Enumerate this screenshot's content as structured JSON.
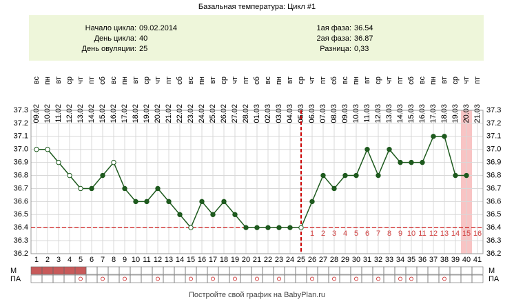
{
  "chart_data": {
    "type": "line",
    "title": "Базальная температура: Цикл #1",
    "summary_left": [
      {
        "label": "Начало цикла:",
        "value": "09.02.2014"
      },
      {
        "label": "День цикла:",
        "value": "40"
      },
      {
        "label": "День овуляции:",
        "value": "25"
      }
    ],
    "summary_right": [
      {
        "label": "1ая фаза:",
        "value": "36.54"
      },
      {
        "label": "2ая фаза:",
        "value": "36.87"
      },
      {
        "label": "Разница:",
        "value": "0,33"
      }
    ],
    "x": [
      1,
      2,
      3,
      4,
      5,
      6,
      7,
      8,
      9,
      10,
      11,
      12,
      13,
      14,
      15,
      16,
      17,
      18,
      19,
      20,
      21,
      22,
      23,
      24,
      25,
      26,
      27,
      28,
      29,
      30,
      31,
      32,
      33,
      34,
      35,
      36,
      37,
      38,
      39,
      40,
      41
    ],
    "dates": [
      "09.02",
      "10.02",
      "11.02",
      "12.02",
      "13.02",
      "14.02",
      "15.02",
      "16.02",
      "17.02",
      "18.02",
      "19.02",
      "20.02",
      "21.02",
      "22.02",
      "23.02",
      "24.02",
      "25.02",
      "26.02",
      "27.02",
      "28.02",
      "01.03",
      "02.03",
      "03.03",
      "04.03",
      "05.03",
      "06.03",
      "07.03",
      "08.03",
      "09.03",
      "10.03",
      "11.03",
      "12.03",
      "13.03",
      "14.03",
      "15.03",
      "16.03",
      "17.03",
      "18.03",
      "19.03",
      "20.03",
      "21.03"
    ],
    "weekdays": [
      "вс",
      "пн",
      "вт",
      "ср",
      "чт",
      "пт",
      "сб",
      "вс",
      "пн",
      "вт",
      "ср",
      "чт",
      "пт",
      "сб",
      "вс",
      "пн",
      "вт",
      "ср",
      "чт",
      "пт",
      "сб",
      "вс",
      "пн",
      "вт",
      "ср",
      "чт",
      "пт",
      "сб",
      "вс",
      "пн",
      "вт",
      "ср",
      "чт",
      "пт",
      "сб",
      "вс",
      "пн",
      "вт",
      "ср",
      "чт",
      "пт"
    ],
    "values": [
      37.0,
      37.0,
      36.9,
      36.8,
      36.7,
      36.7,
      36.8,
      36.9,
      36.7,
      36.6,
      36.6,
      36.7,
      36.6,
      36.5,
      36.4,
      36.6,
      36.5,
      36.6,
      36.5,
      36.4,
      36.4,
      36.4,
      36.4,
      36.4,
      36.4,
      36.6,
      36.8,
      36.7,
      36.8,
      36.8,
      37.0,
      36.8,
      37.0,
      36.9,
      36.9,
      36.9,
      37.1,
      37.1,
      36.8,
      36.8,
      null
    ],
    "hollow": [
      true,
      true,
      true,
      true,
      true,
      false,
      false,
      true,
      false,
      false,
      false,
      false,
      false,
      false,
      true,
      false,
      false,
      false,
      false,
      false,
      false,
      false,
      false,
      false,
      true,
      false,
      false,
      false,
      false,
      false,
      false,
      false,
      false,
      false,
      false,
      false,
      false,
      false,
      false,
      false,
      false
    ],
    "color": "#1e5a1e",
    "ylim": [
      36.2,
      37.3
    ],
    "yticks": [
      36.2,
      36.3,
      36.4,
      36.5,
      36.6,
      36.7,
      36.8,
      36.9,
      {
        "value": 37,
        "label": "37.0"
      },
      37.1,
      37.2,
      37.3
    ],
    "grid": true,
    "cover_line": 36.4,
    "ovulation_day": 25,
    "current_day": 40,
    "post_ovulation_days": [
      1,
      2,
      3,
      4,
      5,
      6,
      7,
      8,
      9,
      10,
      11,
      12,
      13,
      14,
      15,
      16
    ],
    "row_m": "М",
    "row_pa": "ПА",
    "m_days": [
      1,
      2,
      3,
      4,
      5
    ],
    "pa_days": [
      5,
      7,
      9,
      12,
      15,
      17,
      19,
      21,
      23,
      26,
      28,
      30,
      32,
      34,
      35,
      38
    ],
    "footer": "Постройте свой график на BabyPlan.ru"
  }
}
